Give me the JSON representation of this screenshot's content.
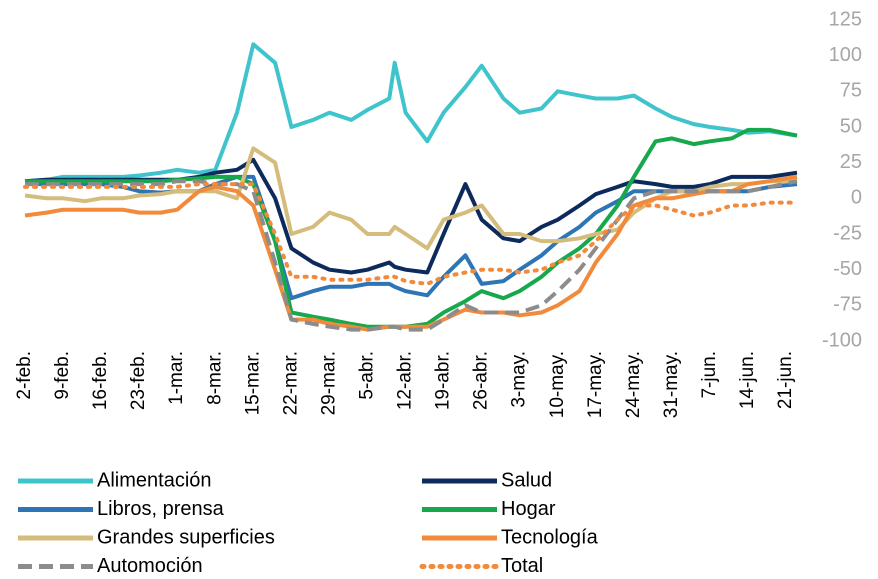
{
  "chart_data": {
    "type": "line",
    "x": [
      0,
      4,
      7,
      11,
      14,
      18,
      21,
      25,
      28,
      32,
      35,
      39,
      42,
      46,
      49,
      53,
      56,
      60,
      63,
      67,
      68,
      70,
      74,
      77,
      81,
      84,
      88,
      91,
      95,
      98,
      102,
      105,
      109,
      112,
      116,
      119,
      123,
      126,
      130,
      133,
      137,
      142
    ],
    "xlim": [
      0,
      142
    ],
    "xticks": [
      {
        "value": 0,
        "label": "2-feb."
      },
      {
        "value": 7,
        "label": "9-feb."
      },
      {
        "value": 14,
        "label": "16-feb."
      },
      {
        "value": 21,
        "label": "23-feb."
      },
      {
        "value": 28,
        "label": "1-mar."
      },
      {
        "value": 35,
        "label": "8-mar."
      },
      {
        "value": 42,
        "label": "15-mar."
      },
      {
        "value": 49,
        "label": "22-mar."
      },
      {
        "value": 56,
        "label": "29-mar."
      },
      {
        "value": 63,
        "label": "5-abr."
      },
      {
        "value": 70,
        "label": "12-abr."
      },
      {
        "value": 77,
        "label": "19-abr."
      },
      {
        "value": 84,
        "label": "26-abr."
      },
      {
        "value": 91,
        "label": "3-may."
      },
      {
        "value": 98,
        "label": "10-may."
      },
      {
        "value": 105,
        "label": "17-may."
      },
      {
        "value": 112,
        "label": "24-may."
      },
      {
        "value": 119,
        "label": "31-may."
      },
      {
        "value": 126,
        "label": "7-jun."
      },
      {
        "value": 133,
        "label": "14-jun."
      },
      {
        "value": 140,
        "label": "21-jun."
      }
    ],
    "ylim": [
      -100,
      125
    ],
    "yticks": [
      125,
      100,
      75,
      50,
      25,
      0,
      -25,
      -50,
      -75,
      -100
    ],
    "series": [
      {
        "name": "Alimentación",
        "color": "#40c4cc",
        "dash": "solid",
        "values": [
          12,
          13,
          15,
          15,
          15,
          15,
          16,
          18,
          20,
          18,
          20,
          60,
          108,
          95,
          50,
          55,
          60,
          55,
          62,
          70,
          95,
          60,
          40,
          60,
          78,
          93,
          70,
          60,
          63,
          75,
          72,
          70,
          70,
          72,
          63,
          57,
          52,
          50,
          48,
          46,
          47,
          44
        ]
      },
      {
        "name": "Salud",
        "color": "#0d2a5c",
        "dash": "solid",
        "values": [
          12,
          13,
          13,
          13,
          13,
          13,
          13,
          13,
          13,
          15,
          18,
          20,
          27,
          0,
          -35,
          -45,
          -50,
          -52,
          -50,
          -45,
          -48,
          -50,
          -52,
          -25,
          10,
          -15,
          -28,
          -30,
          -20,
          -15,
          -5,
          3,
          8,
          12,
          10,
          8,
          8,
          10,
          15,
          15,
          15,
          18
        ]
      },
      {
        "name": "Libros, prensa",
        "color": "#2e75b6",
        "dash": "solid",
        "values": [
          10,
          10,
          10,
          10,
          10,
          8,
          5,
          4,
          5,
          5,
          10,
          15,
          15,
          -30,
          -70,
          -65,
          -62,
          -62,
          -60,
          -60,
          -62,
          -65,
          -68,
          -55,
          -40,
          -60,
          -58,
          -50,
          -40,
          -30,
          -20,
          -10,
          -2,
          5,
          5,
          5,
          5,
          5,
          5,
          5,
          8,
          10
        ]
      },
      {
        "name": "Hogar",
        "color": "#16a84a",
        "dash": "solid",
        "values": [
          12,
          12,
          12,
          12,
          12,
          12,
          12,
          12,
          13,
          14,
          15,
          15,
          10,
          -30,
          -80,
          -83,
          -85,
          -88,
          -90,
          -90,
          -90,
          -90,
          -88,
          -80,
          -72,
          -65,
          -70,
          -65,
          -55,
          -45,
          -35,
          -25,
          -5,
          15,
          40,
          42,
          38,
          40,
          42,
          48,
          48,
          44
        ]
      },
      {
        "name": "Grandes superficies",
        "color": "#d4bc7c",
        "dash": "solid",
        "values": [
          2,
          0,
          0,
          -2,
          0,
          0,
          2,
          3,
          5,
          5,
          5,
          0,
          35,
          25,
          -25,
          -20,
          -10,
          -15,
          -25,
          -25,
          -20,
          -25,
          -35,
          -15,
          -10,
          -5,
          -25,
          -25,
          -30,
          -30,
          -28,
          -25,
          -22,
          -10,
          0,
          5,
          5,
          8,
          10,
          10,
          12,
          12
        ]
      },
      {
        "name": "Tecnología",
        "color": "#f28a3c",
        "dash": "solid",
        "values": [
          -12,
          -10,
          -8,
          -8,
          -8,
          -8,
          -10,
          -10,
          -8,
          5,
          8,
          5,
          -5,
          -50,
          -85,
          -85,
          -88,
          -90,
          -92,
          -90,
          -90,
          -90,
          -90,
          -85,
          -78,
          -80,
          -80,
          -82,
          -80,
          -75,
          -65,
          -45,
          -25,
          -5,
          0,
          0,
          3,
          5,
          5,
          10,
          12,
          15
        ]
      },
      {
        "name": "Automoción",
        "color": "#8c8c8c",
        "dash": "dashed",
        "values": [
          10,
          10,
          10,
          10,
          10,
          10,
          10,
          10,
          12,
          12,
          10,
          10,
          5,
          -45,
          -85,
          -88,
          -90,
          -92,
          -92,
          -90,
          -90,
          -92,
          -92,
          -85,
          -75,
          -80,
          -80,
          -80,
          -75,
          -65,
          -50,
          -35,
          -15,
          0,
          5,
          5,
          5,
          5,
          5,
          5,
          8,
          12
        ]
      },
      {
        "name": "Total",
        "color": "#f28a3c",
        "dash": "dotted",
        "values": [
          8,
          8,
          8,
          8,
          8,
          8,
          8,
          8,
          8,
          10,
          10,
          10,
          10,
          -25,
          -55,
          -55,
          -57,
          -57,
          -57,
          -55,
          -55,
          -58,
          -60,
          -55,
          -52,
          -50,
          -50,
          -52,
          -50,
          -45,
          -40,
          -30,
          -15,
          -5,
          -5,
          -8,
          -12,
          -10,
          -5,
          -5,
          -3,
          -3
        ]
      }
    ]
  }
}
